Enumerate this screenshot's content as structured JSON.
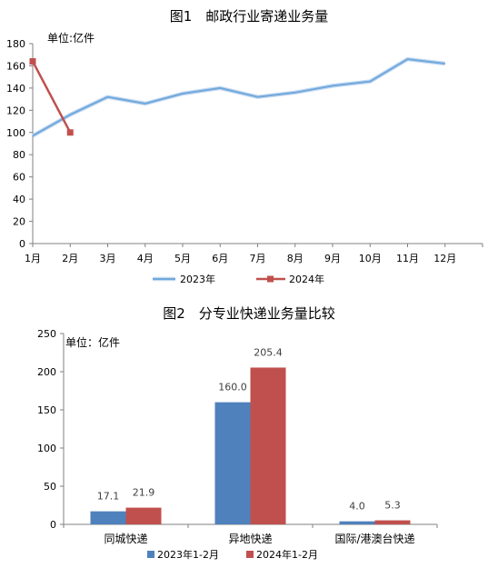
{
  "chart_data": [
    {
      "type": "line",
      "title": "图1　邮政行业寄递业务量",
      "unit_label": "单位:亿件",
      "categories": [
        "1月",
        "2月",
        "3月",
        "4月",
        "5月",
        "6月",
        "7月",
        "8月",
        "9月",
        "10月",
        "11月",
        "12月"
      ],
      "ylim": [
        0,
        180
      ],
      "yticks": [
        "0",
        "20",
        "40",
        "60",
        "80",
        "100",
        "120",
        "140",
        "160",
        "180"
      ],
      "series": [
        {
          "name": "2023年",
          "color": "#6FA8DC",
          "values": [
            97,
            116,
            132,
            126,
            135,
            140,
            132,
            136,
            142,
            146,
            166,
            162
          ]
        },
        {
          "name": "2024年",
          "color": "#C0504D",
          "values": [
            164,
            100,
            null,
            null,
            null,
            null,
            null,
            null,
            null,
            null,
            null,
            null
          ]
        }
      ],
      "grid": false,
      "legend_position": "bottom"
    },
    {
      "type": "bar",
      "title": "图2　分专业快递业务量比较",
      "unit_label": "单位：亿件",
      "categories": [
        "同城快递",
        "异地快递",
        "国际/港澳台快递"
      ],
      "ylim": [
        0,
        250
      ],
      "yticks": [
        "0",
        "50",
        "100",
        "150",
        "200",
        "250"
      ],
      "series": [
        {
          "name": "2023年1-2月",
          "color": "#4F81BD",
          "values": [
            17.1,
            160.0,
            4.0
          ],
          "labels": [
            "17.1",
            "160.0",
            "4.0"
          ]
        },
        {
          "name": "2024年1-2月",
          "color": "#C0504D",
          "values": [
            21.9,
            205.4,
            5.3
          ],
          "labels": [
            "21.9",
            "205.4",
            "5.3"
          ]
        }
      ],
      "grid": false,
      "legend_position": "bottom"
    }
  ]
}
